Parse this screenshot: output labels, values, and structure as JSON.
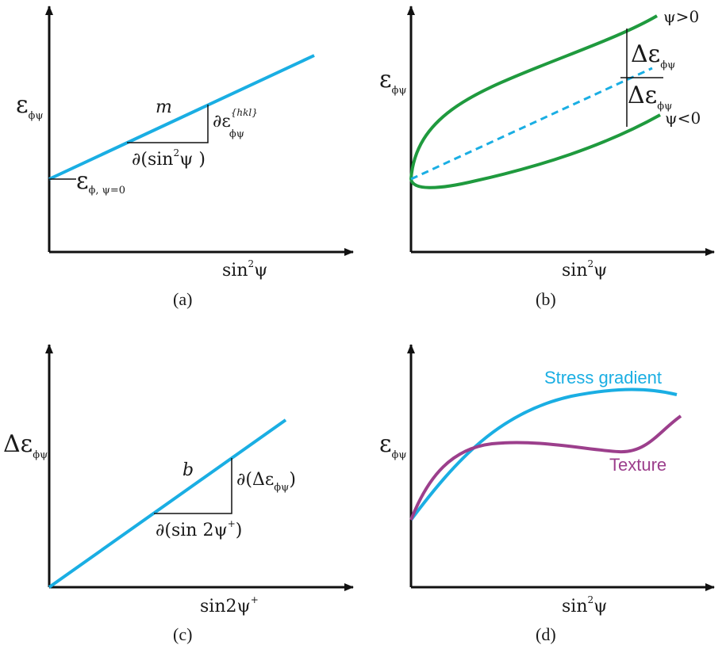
{
  "colors": {
    "axis": "#111111",
    "blue_line": "#1aaee3",
    "green_curve": "#1f9a3e",
    "purple_curve": "#9c3f8c",
    "annotation_line": "#111111"
  },
  "panel_a": {
    "caption": "(a)",
    "y_label": "ε",
    "y_label_sub": "ϕψ",
    "x_label": "sin",
    "x_label_sup": "2",
    "x_label_tail": "ψ",
    "slope_label": "m",
    "rise_label": "∂ε",
    "rise_label_sup": "{hkl}",
    "rise_label_sub": "ϕψ",
    "run_label": "∂(sin",
    "run_label_sup": "2",
    "run_label_tail": "ψ )",
    "intercept_label": "ε",
    "intercept_label_sub": "ϕ, ψ=0"
  },
  "panel_b": {
    "caption": "(b)",
    "y_label": "ε",
    "y_label_sub": "ϕψ",
    "x_label": "sin",
    "x_label_sup": "2",
    "x_label_tail": "ψ",
    "upper_label": "ψ>0",
    "lower_label": "ψ<0",
    "delta_upper": "Δε",
    "delta_upper_sub": "ϕψ",
    "delta_lower": "Δε",
    "delta_lower_sub": "ϕψ"
  },
  "panel_c": {
    "caption": "(c)",
    "y_label": "Δε",
    "y_label_sub": "ϕψ",
    "x_label": "sin2ψ",
    "x_label_sup": "+",
    "slope_label": "b",
    "rise_label": "∂(Δε",
    "rise_label_sub": "ϕψ",
    "rise_label_tail": ")",
    "run_label": "∂(sin 2ψ",
    "run_label_sup": "+",
    "run_label_tail": ")"
  },
  "panel_d": {
    "caption": "(d)",
    "y_label": "ε",
    "y_label_sub": "ϕψ",
    "x_label": "sin",
    "x_label_sup": "2",
    "x_label_tail": "ψ",
    "stress_label": "Stress gradient",
    "texture_label": "Texture"
  }
}
